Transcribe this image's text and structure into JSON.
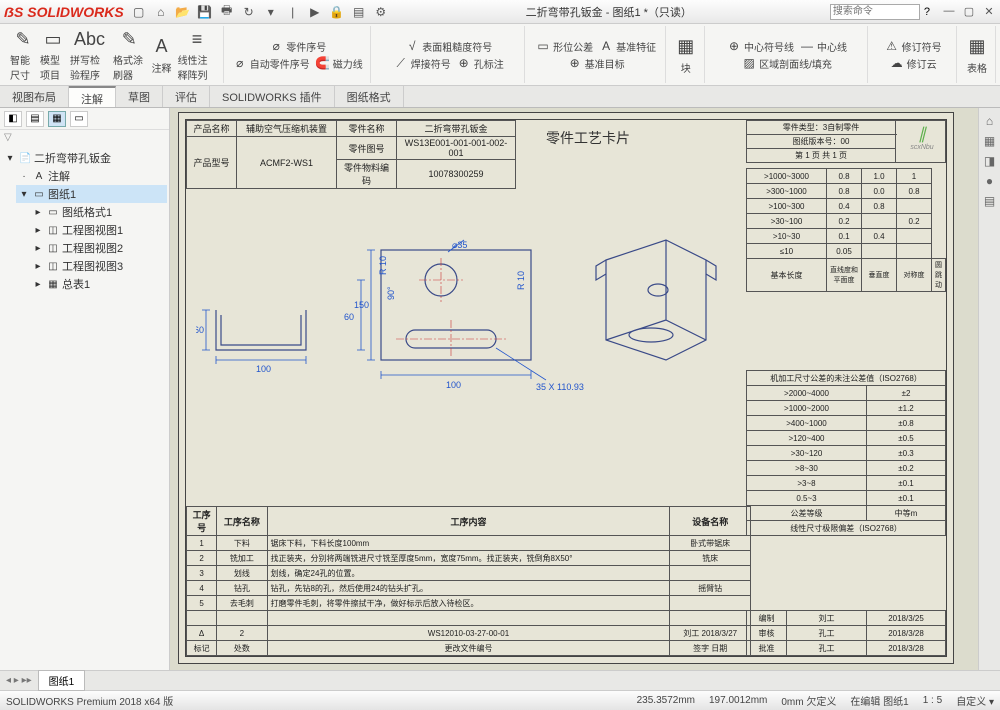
{
  "app": {
    "name": "SOLIDWORKS",
    "doc_title": "二折弯带孔钣金 - 图纸1 *（只读）",
    "search_ph": "搜索命令"
  },
  "ribbon": {
    "big": [
      {
        "icon": "✎",
        "label": "智能尺寸"
      },
      {
        "icon": "▭",
        "label": "模型项目"
      },
      {
        "icon": "Abc",
        "label": "拼写检验程序"
      },
      {
        "icon": "✎",
        "label": "格式涂刷器"
      },
      {
        "icon": "A",
        "label": "注释"
      },
      {
        "icon": "≡",
        "label": "线性注释阵列"
      }
    ],
    "col1": [
      {
        "icon": "⌀",
        "label": "零件序号"
      },
      {
        "icon": "⌀",
        "label": "自动零件序号"
      },
      {
        "icon": "🧲",
        "label": "磁力线"
      }
    ],
    "col2": [
      {
        "icon": "√",
        "label": "表面粗糙度符号"
      },
      {
        "icon": "⟋",
        "label": "焊接符号"
      },
      {
        "icon": "⊕",
        "label": "孔标注"
      }
    ],
    "col3": [
      {
        "icon": "▭",
        "label": "形位公差"
      },
      {
        "icon": "A",
        "label": "基准特征"
      },
      {
        "icon": "⊕",
        "label": "基准目标"
      }
    ],
    "big2": [
      {
        "icon": "▦",
        "label": "块"
      }
    ],
    "col4": [
      {
        "icon": "⊕",
        "label": "中心符号线"
      },
      {
        "icon": "—",
        "label": "中心线"
      },
      {
        "icon": "▨",
        "label": "区域剖面线/填充"
      }
    ],
    "col5": [
      {
        "icon": "⚠",
        "label": "修订符号"
      },
      {
        "icon": "☁",
        "label": "修订云"
      }
    ],
    "big3": [
      {
        "icon": "▦",
        "label": "表格"
      }
    ]
  },
  "tabs": [
    "视图布局",
    "注解",
    "草图",
    "评估",
    "SOLIDWORKS 插件",
    "图纸格式"
  ],
  "active_tab": 1,
  "tree": {
    "root": "二折弯带孔钣金",
    "items": [
      {
        "icon": "A",
        "label": "注解"
      },
      {
        "icon": "▭",
        "label": "图纸1",
        "sel": true,
        "children": [
          {
            "icon": "▭",
            "label": "图纸格式1"
          },
          {
            "icon": "◫",
            "label": "工程图视图1"
          },
          {
            "icon": "◫",
            "label": "工程图视图2"
          },
          {
            "icon": "◫",
            "label": "工程图视图3"
          },
          {
            "icon": "▦",
            "label": "总表1"
          }
        ]
      }
    ]
  },
  "sheet": {
    "header": {
      "r1": [
        "产品名称",
        "辅助空气压缩机装置",
        "零件名称",
        "二折弯带孔钣金"
      ],
      "r2": [
        "产品型号",
        "ACMF2-WS1",
        "零件图号",
        "WS13E001-001-001-002-001"
      ],
      "r3": [
        "",
        "",
        "零件物料编码",
        "10078300259"
      ]
    },
    "center_title": "零件工艺卡片",
    "right_hdr": {
      "r1": "零件类型：3自制零件",
      "r2": "图纸版本号：00",
      "r3": "第 1 页  共 1 页"
    },
    "tol_title": "基本长度",
    "tol_rows": [
      [
        ">1000~3000",
        "0.8",
        "1.0",
        "1"
      ],
      [
        ">300~1000",
        "0.8",
        "0.0",
        "0.8"
      ],
      [
        ">100~300",
        "0.4",
        "0.8",
        ""
      ],
      [
        ">30~100",
        "0.2",
        "",
        "0.2"
      ],
      [
        ">10~30",
        "0.1",
        "0.4",
        ""
      ],
      [
        "≤10",
        "0.05",
        "",
        ""
      ]
    ],
    "tol_foot": [
      "直线度和平面度",
      "垂直度",
      "对称度",
      "圆跳动"
    ],
    "tol2_title": "机加工尺寸公差的未注公差值（ISO2768）",
    "tol2_rows": [
      [
        ">2000~4000",
        "±2"
      ],
      [
        ">1000~2000",
        "±1.2"
      ],
      [
        ">400~1000",
        "±0.8"
      ],
      [
        ">120~400",
        "±0.5"
      ],
      [
        ">30~120",
        "±0.3"
      ],
      [
        ">8~30",
        "±0.2"
      ],
      [
        ">3~8",
        "±0.1"
      ],
      [
        "0.5~3",
        "±0.1"
      ],
      [
        "公差等级",
        "中等m"
      ]
    ],
    "tol2_foot": "线性尺寸极限偏差（ISO2768）",
    "proc": {
      "headers": [
        "工序号",
        "工序名称",
        "工序内容",
        "设备名称"
      ],
      "rows": [
        [
          "1",
          "下料",
          "锯床下料，下料长度100mm",
          "卧式带锯床"
        ],
        [
          "2",
          "铣加工",
          "找正装夹，分别将两端铣进尺寸铣至厚度5mm，宽度75mm。找正装夹，铣倒角8X50°",
          "铣床"
        ],
        [
          "3",
          "划线",
          "划线，确定24孔的位置。",
          ""
        ],
        [
          "4",
          "钻孔",
          "钻孔，先钻8的孔，然后使用24的钻头扩孔。",
          "摇臂钻"
        ],
        [
          "5",
          "去毛刺",
          "打磨零件毛刺，将零件擦拭干净，做好标示后放入待检区。",
          ""
        ],
        [
          "",
          "",
          "",
          "",
          ""
        ]
      ],
      "footer": [
        [
          "Δ",
          "2",
          "",
          "WS12010-03-27-00-01",
          "刘工",
          "2018/3/27"
        ],
        [
          "标记",
          "处数",
          "",
          "更改文件编号",
          "签字",
          "日期"
        ]
      ]
    },
    "sigs": [
      [
        "编制",
        "刘工",
        "2018/3/25"
      ],
      [
        "审核",
        "孔工",
        "2018/3/28"
      ],
      [
        "批准",
        "孔工",
        "2018/3/28"
      ]
    ],
    "dims": {
      "d1": "100",
      "d2": "60",
      "d3": "150",
      "d4": "60",
      "d5": "100",
      "d6": "⌀35",
      "d7": "R 10",
      "d8": "R 10",
      "d9": "90°",
      "d10": "35 X 110.93"
    }
  },
  "bottom_tabs": [
    "图纸1"
  ],
  "status": {
    "left": "SOLIDWORKS Premium 2018 x64 版",
    "coord1": "235.3572mm",
    "coord2": "197.0012mm",
    "coord3": "0mm 欠定义",
    "mode": "在编辑 图纸1",
    "scale": "1 : 5",
    "custom": "自定义 ▾"
  }
}
